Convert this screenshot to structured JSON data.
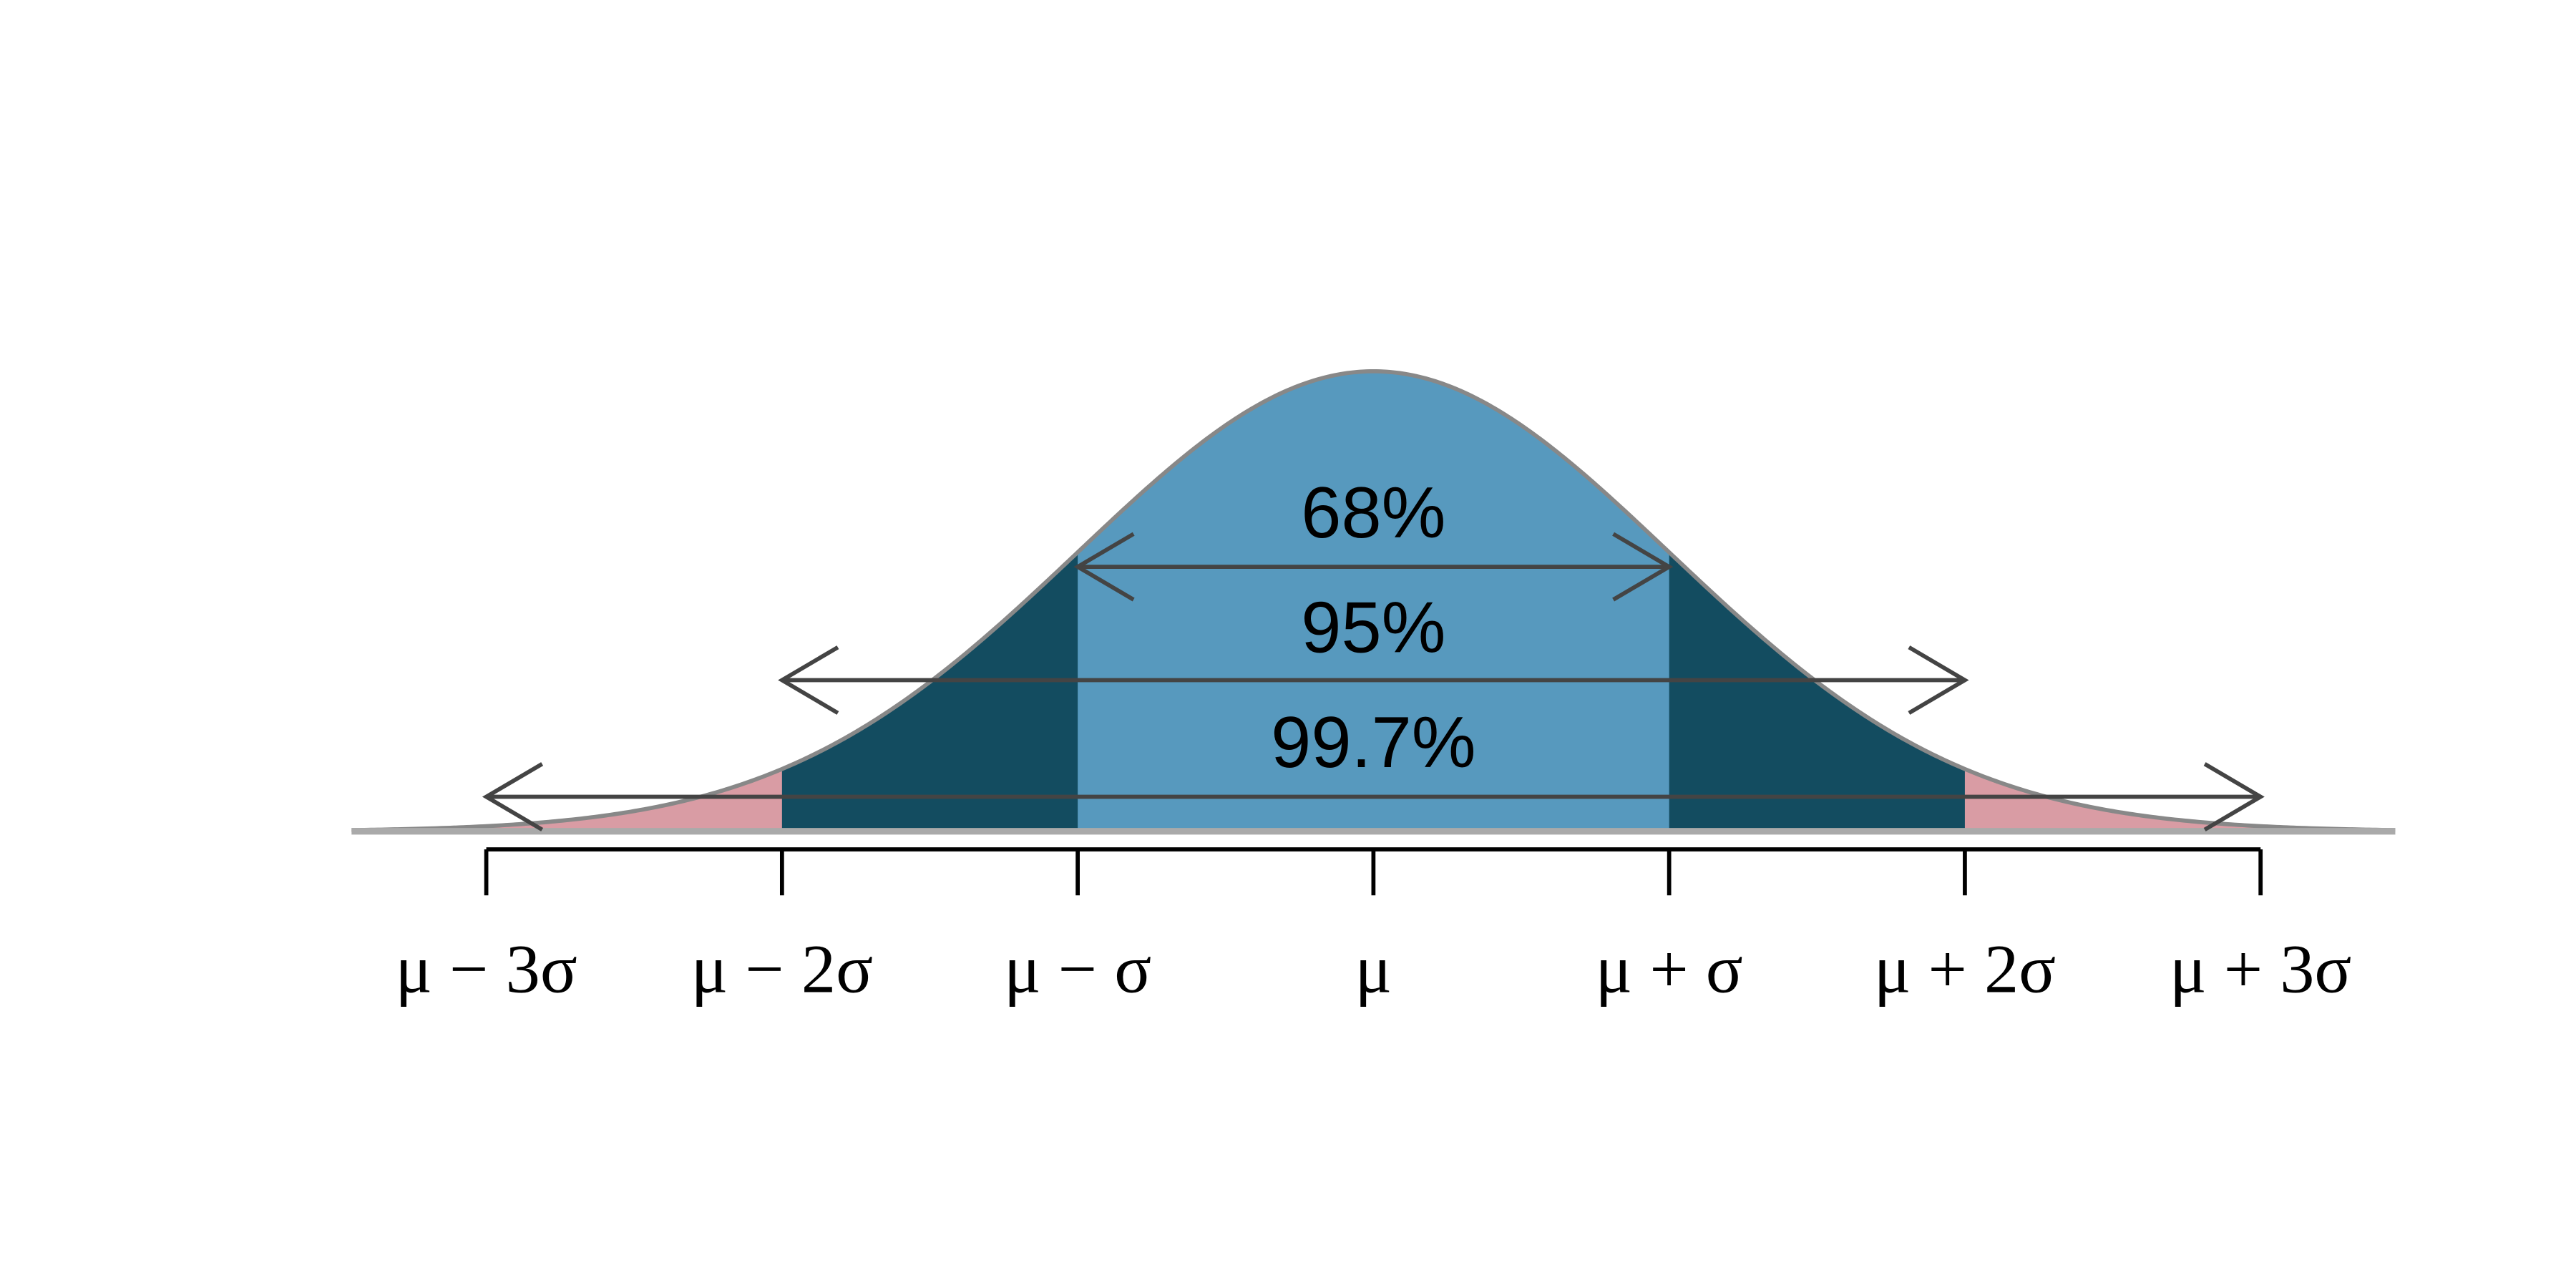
{
  "ranges": [
    "68%",
    "95%",
    "99.7%"
  ],
  "axis": {
    "labels": [
      "μ − 3σ",
      "μ − 2σ",
      "μ − σ",
      "μ",
      "μ + σ",
      "μ + 2σ",
      "μ + 3σ"
    ]
  }
}
